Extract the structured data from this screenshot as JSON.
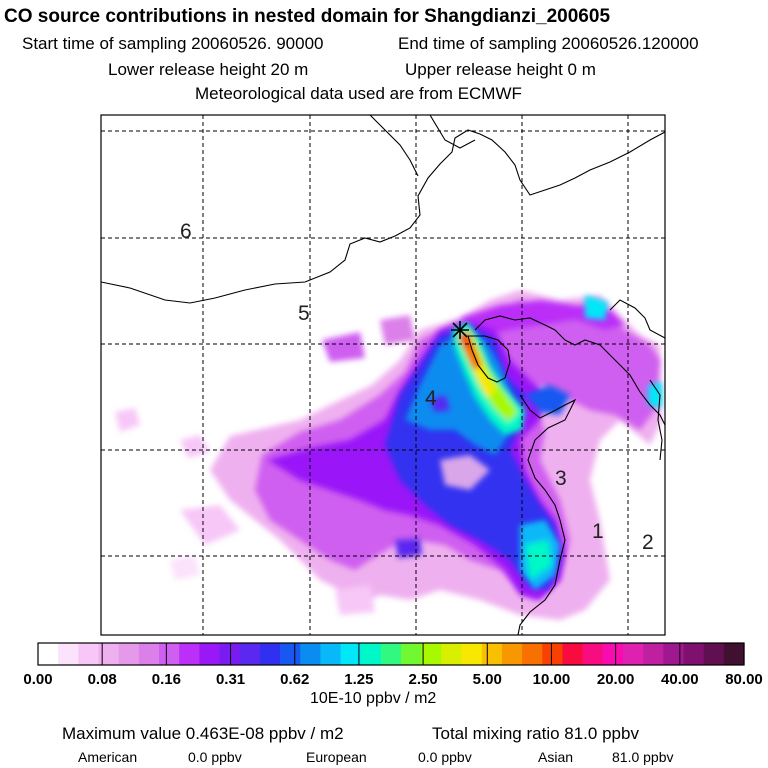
{
  "header": {
    "title": "CO  source contributions in nested domain for Shangdianzi_200605",
    "start_sampling": "Start time of sampling 20060526. 90000",
    "end_sampling": "End time of sampling 20060526.120000",
    "lower_release": "Lower release height   20 m",
    "upper_release": "Upper release height    0 m",
    "meteorology": "Meteorological data used are from ECMWF"
  },
  "colors": {
    "palette": [
      "#ffffff",
      "#fbe3fb",
      "#f7c7f7",
      "#efb0ef",
      "#e59ae9",
      "#db7fe9",
      "#cf5ff0",
      "#bb2ff8",
      "#9a18f8",
      "#7a1cf0",
      "#5a28f0",
      "#3230f0",
      "#1858f0",
      "#0a8cf0",
      "#08b8f8",
      "#00e8f8",
      "#00f8c8",
      "#30f880",
      "#70f830",
      "#a8f800",
      "#d8f000",
      "#f8e800",
      "#f8c000",
      "#f89800",
      "#f87000",
      "#f84000",
      "#f80c40",
      "#f80c80",
      "#f80cb0",
      "#e020b0",
      "#c020a0",
      "#a01890",
      "#801070",
      "#601050",
      "#401030"
    ]
  },
  "chart_data": {
    "type": "heatmap",
    "colorbar": {
      "tick_labels": [
        "0.00",
        "0.08",
        "0.16",
        "0.31",
        "0.62",
        "1.25",
        "2.50",
        "5.00",
        "10.00",
        "20.00",
        "40.00",
        "80.00"
      ],
      "unit": "10E-10 ppbv / m2"
    },
    "map_labels": [
      "1",
      "2",
      "3",
      "4",
      "5",
      "6"
    ],
    "receptor_marker": "star",
    "plume_cells": [
      {
        "col": 11,
        "row": 6,
        "level": 28
      },
      {
        "col": 11,
        "row": 7,
        "level": 24
      },
      {
        "col": 12,
        "row": 8,
        "level": 22
      },
      {
        "col": 12,
        "row": 9,
        "level": 19
      },
      {
        "col": 13,
        "row": 10,
        "level": 17
      },
      {
        "col": 10,
        "row": 6,
        "level": 13
      },
      {
        "col": 10,
        "row": 8,
        "level": 12
      },
      {
        "col": 11,
        "row": 10,
        "level": 11
      },
      {
        "col": 9,
        "row": 10,
        "level": 8
      },
      {
        "col": 10,
        "row": 11,
        "level": 9
      },
      {
        "col": 12,
        "row": 12,
        "level": 8
      },
      {
        "col": 13,
        "row": 14,
        "level": 14
      },
      {
        "col": 13,
        "row": 15,
        "level": 14
      },
      {
        "col": 14,
        "row": 15,
        "level": 13
      },
      {
        "col": 15,
        "row": 6,
        "level": 14
      },
      {
        "col": 16,
        "row": 9,
        "level": 13
      }
    ],
    "summary": {
      "max_value": "Maximum value  0.463E-08 ppbv / m2",
      "total_mixing": "Total mixing ratio      81.0 ppbv",
      "american_label": "American",
      "american_value": "0.0 ppbv",
      "european_label": "European",
      "european_value": "0.0 ppbv",
      "asian_label": "Asian",
      "asian_value": "81.0 ppbv"
    }
  }
}
